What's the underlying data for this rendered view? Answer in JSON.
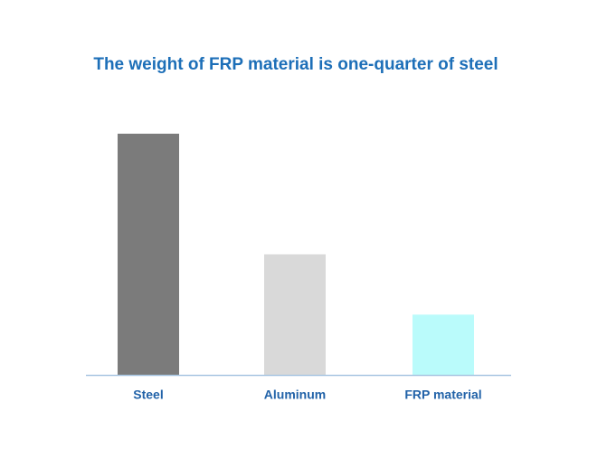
{
  "chart_data": {
    "type": "bar",
    "title": "The weight of FRP material is one-quarter of steel",
    "categories": [
      "Steel",
      "Aluminum",
      "FRP material"
    ],
    "values": [
      100,
      50,
      25
    ],
    "colors": [
      "#7b7b7b",
      "#d9d9d9",
      "#bafbfb"
    ],
    "axis_color": "#a9c6e2"
  }
}
